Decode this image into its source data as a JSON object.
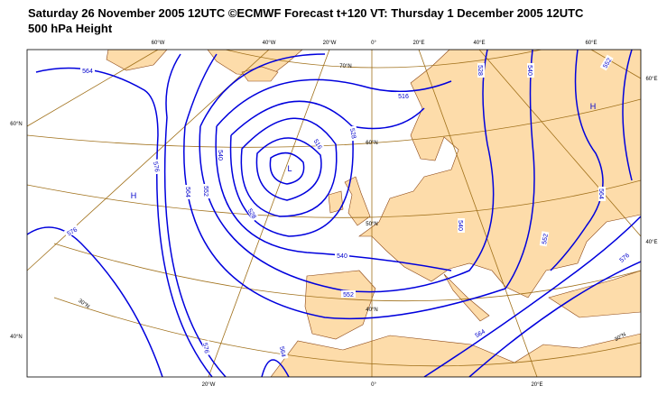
{
  "header": {
    "title_line1": "Saturday 26 November 2005 12UTC ©ECMWF Forecast t+120 VT: Thursday 1 December 2005 12UTC",
    "title_line2": "500 hPa Height"
  },
  "map": {
    "graticule_labels": [
      "60°W",
      "40°W",
      "20°W",
      "0°",
      "20°E",
      "40°E",
      "60°E",
      "60°N",
      "40°N",
      "60°E",
      "40°E",
      "20°W",
      "0°",
      "20°E",
      "70°N",
      "60°N",
      "50°N",
      "40°N",
      "30°N",
      "30°N"
    ],
    "contour_labels": [
      564,
      516,
      528,
      516,
      540,
      552,
      564,
      576,
      576,
      528,
      540,
      552,
      540,
      528,
      540,
      552,
      564,
      552,
      576,
      564,
      576,
      564
    ],
    "pressure_centers": [
      "H",
      "H",
      "L"
    ]
  }
}
